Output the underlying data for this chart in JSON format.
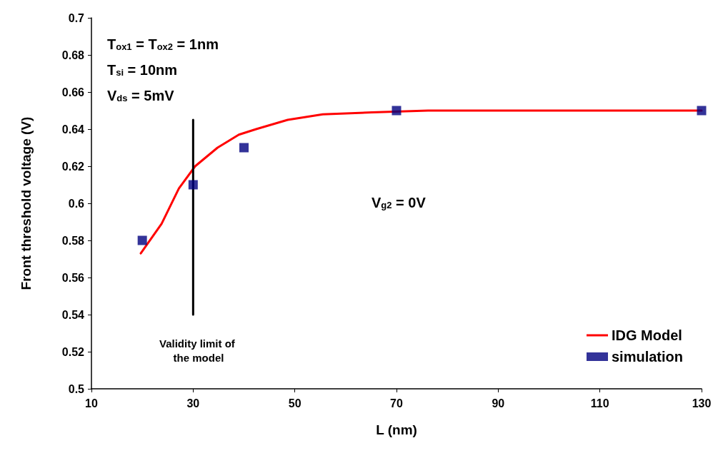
{
  "chart_data": {
    "type": "line",
    "xlabel": "L (nm)",
    "ylabel": "Front threshold voltage (V)",
    "xlim": [
      10,
      130
    ],
    "xticks": [
      10,
      30,
      50,
      70,
      90,
      110,
      130
    ],
    "ylim": [
      0.5,
      0.7
    ],
    "yticks": [
      0.5,
      0.52,
      0.54,
      0.56,
      0.58,
      0.6,
      0.62,
      0.64,
      0.66,
      0.68,
      0.7
    ],
    "grid": false,
    "legend": "bottom right",
    "series": [
      {
        "name": "IDG Model",
        "type": "line",
        "color": "#ff0000",
        "marker": "none",
        "line_style": "solid",
        "x": [
          19.7,
          23.8,
          27.2,
          30.4,
          34.8,
          39,
          42.4,
          48.6,
          55.5,
          65.2,
          76.2,
          130
        ],
        "values": [
          0.573,
          0.589,
          0.608,
          0.62,
          0.63,
          0.637,
          0.64,
          0.645,
          0.648,
          0.649,
          0.65,
          0.65
        ]
      },
      {
        "name": "simulation",
        "type": "scatter",
        "color": "#000080",
        "marker": "square",
        "x": [
          20,
          30,
          40,
          70,
          130
        ],
        "values": [
          0.58,
          0.61,
          0.63,
          0.65,
          0.65
        ]
      },
      {
        "type": "line",
        "color": "#000000",
        "marker": "none",
        "line_style": "solid",
        "x": [
          30,
          30
        ],
        "values": [
          0.54,
          0.645
        ]
      }
    ],
    "annotations": [
      "T$_{ox1}$ = T$_{ox2}$ = 1nm",
      "T$_{si}$ = 10nm",
      "V$_{ds}$ = 5mV",
      "V$_{g2}$ = 0V",
      "Validity limit of the model"
    ]
  }
}
